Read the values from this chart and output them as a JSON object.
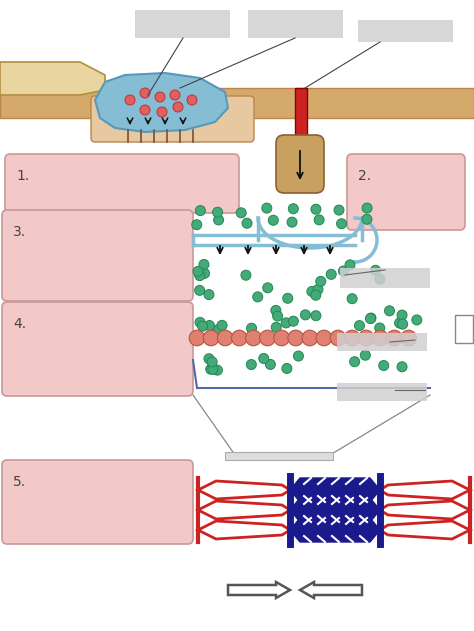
{
  "bg_color": "#ffffff",
  "pink_box_color": "#f2c8c8",
  "pink_box_edge": "#c89898",
  "nerve_blue": "#85bdd4",
  "muscle_red": "#cc2222",
  "myosin_blue": "#1a1a8c",
  "ca_green": "#44aa77",
  "troponin_salmon": "#e08070",
  "skin_tan": "#d4a96a",
  "skin_edge": "#b8864e",
  "arrow_dark": "#111111",
  "gray_label": "#d0d0d0",
  "bone_color": "#e8d5a0",
  "step_labels": [
    "1.",
    "2.",
    "3.",
    "4.",
    "5."
  ],
  "figsize": [
    4.74,
    6.31
  ],
  "dpi": 100
}
